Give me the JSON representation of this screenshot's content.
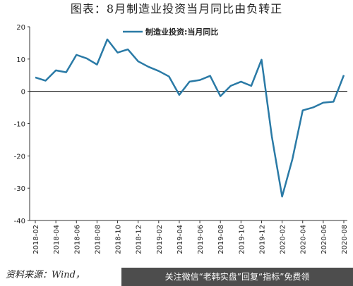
{
  "chart_data": {
    "type": "line",
    "title": "图表：8月制造业投资当月同比由负转正",
    "categories": [
      "2018-02",
      null,
      "2018-04",
      null,
      "2018-06",
      null,
      "2018-08",
      null,
      "2018-10",
      null,
      "2018-12",
      null,
      "2019-02",
      null,
      "2019-04",
      null,
      "2019-06",
      null,
      "2019-08",
      null,
      "2019-10",
      null,
      "2019-12",
      null,
      "2020-02",
      null,
      "2020-04",
      null,
      "2020-06",
      null,
      "2020-08"
    ],
    "series": [
      {
        "name": "制造业投资:当月同比",
        "color": "#2a7aa6",
        "values": [
          4.3,
          3.3,
          6.5,
          5.9,
          11.3,
          10.2,
          8.3,
          16.1,
          12,
          13,
          9.3,
          7.6,
          6.3,
          4.6,
          -1.1,
          3,
          3.5,
          4.8,
          -1.5,
          1.7,
          3,
          1.7,
          9.8,
          -14,
          -32.6,
          -21,
          -5.9,
          -5,
          -3.5,
          -3.2,
          5
        ]
      }
    ],
    "ylim": [
      -40,
      20
    ],
    "yticks": [
      20,
      10,
      0,
      -10,
      -20,
      -30,
      -40
    ],
    "legend": "top",
    "source": "资料来源：Wind，",
    "watermark": "关注微信“老韩实盘”回复“指标”免费领"
  }
}
